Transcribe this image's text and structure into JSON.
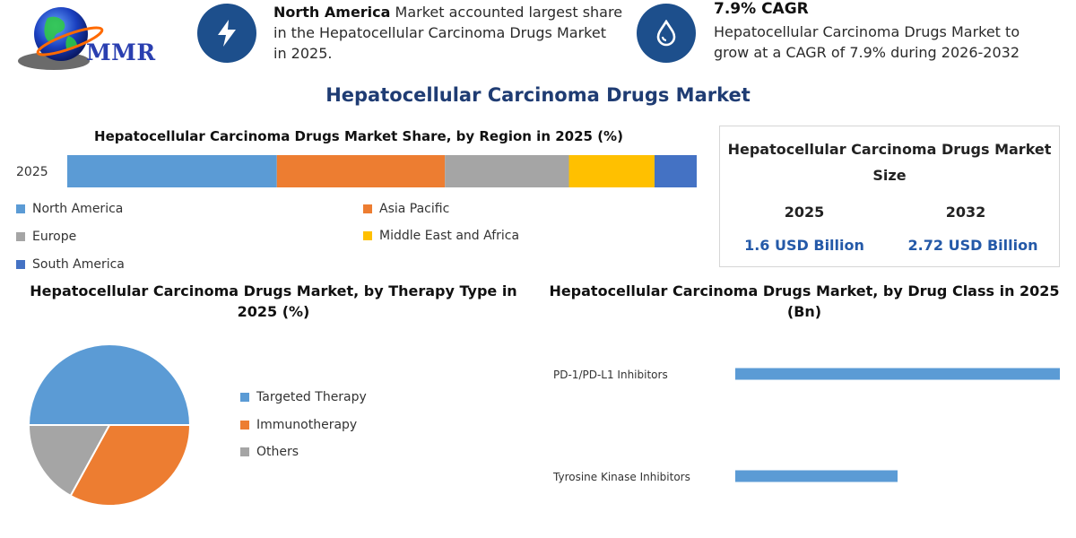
{
  "logo": {
    "text": "MMR"
  },
  "info": [
    {
      "icon": "lightning-icon",
      "bold": "North America",
      "text": " Market accounted largest share in the Hepatocellular Carcinoma Drugs Market in 2025."
    },
    {
      "icon": "water-drop-icon",
      "title": "7.9% CAGR",
      "text": "Hepatocellular Carcinoma Drugs Market to grow at a CAGR of 7.9% during 2026-2032"
    }
  ],
  "main_title": "Hepatocellular Carcinoma Drugs Market",
  "market_size": {
    "title": "Hepatocellular Carcinoma Drugs Market Size",
    "years": [
      "2025",
      "2032"
    ],
    "values": [
      "1.6 USD Billion",
      "2.72 USD Billion"
    ]
  },
  "colors": {
    "blue": "#5b9bd5",
    "orange": "#ed7d31",
    "gray": "#a5a5a5",
    "yellow": "#ffc000",
    "dark_blue": "#4472c4",
    "navy": "#1d4f8c"
  },
  "chart_data": [
    {
      "type": "bar",
      "orientation": "horizontal-stacked",
      "title": "Hepatocellular Carcinoma Drugs Market Share, by Region in 2025 (%)",
      "categories": [
        "2025"
      ],
      "series": [
        {
          "name": "North America",
          "values": [
            33.3
          ],
          "color": "#5b9bd5"
        },
        {
          "name": "Asia Pacific",
          "values": [
            26.7
          ],
          "color": "#ed7d31"
        },
        {
          "name": "Europe",
          "values": [
            19.7
          ],
          "color": "#a5a5a5"
        },
        {
          "name": "Middle East and Africa",
          "values": [
            13.6
          ],
          "color": "#ffc000"
        },
        {
          "name": "South America",
          "values": [
            6.7
          ],
          "color": "#4472c4"
        }
      ],
      "legend": [
        "North America",
        "Asia Pacific",
        "Europe",
        "Middle East and Africa",
        "South America"
      ],
      "legend_position": "bottom",
      "grid": false
    },
    {
      "type": "pie",
      "title": "Hepatocellular Carcinoma Drugs Market, by Therapy Type in 2025 (%)",
      "labels": [
        "Targeted Therapy",
        "Immunotherapy",
        "Others"
      ],
      "values": [
        50,
        33,
        17
      ],
      "colors": [
        "#5b9bd5",
        "#ed7d31",
        "#a5a5a5"
      ],
      "legend_position": "right"
    },
    {
      "type": "bar",
      "orientation": "horizontal",
      "title": "Hepatocellular Carcinoma Drugs Market, by Drug Class in 2025 (Bn)",
      "categories": [
        "PD-1/PD-L1 Inhibitors",
        "Tyrosine Kinase Inhibitors"
      ],
      "values": [
        1.0,
        0.5
      ],
      "color": "#5b9bd5",
      "xlim": [
        0,
        1.0
      ],
      "grid": false
    }
  ]
}
